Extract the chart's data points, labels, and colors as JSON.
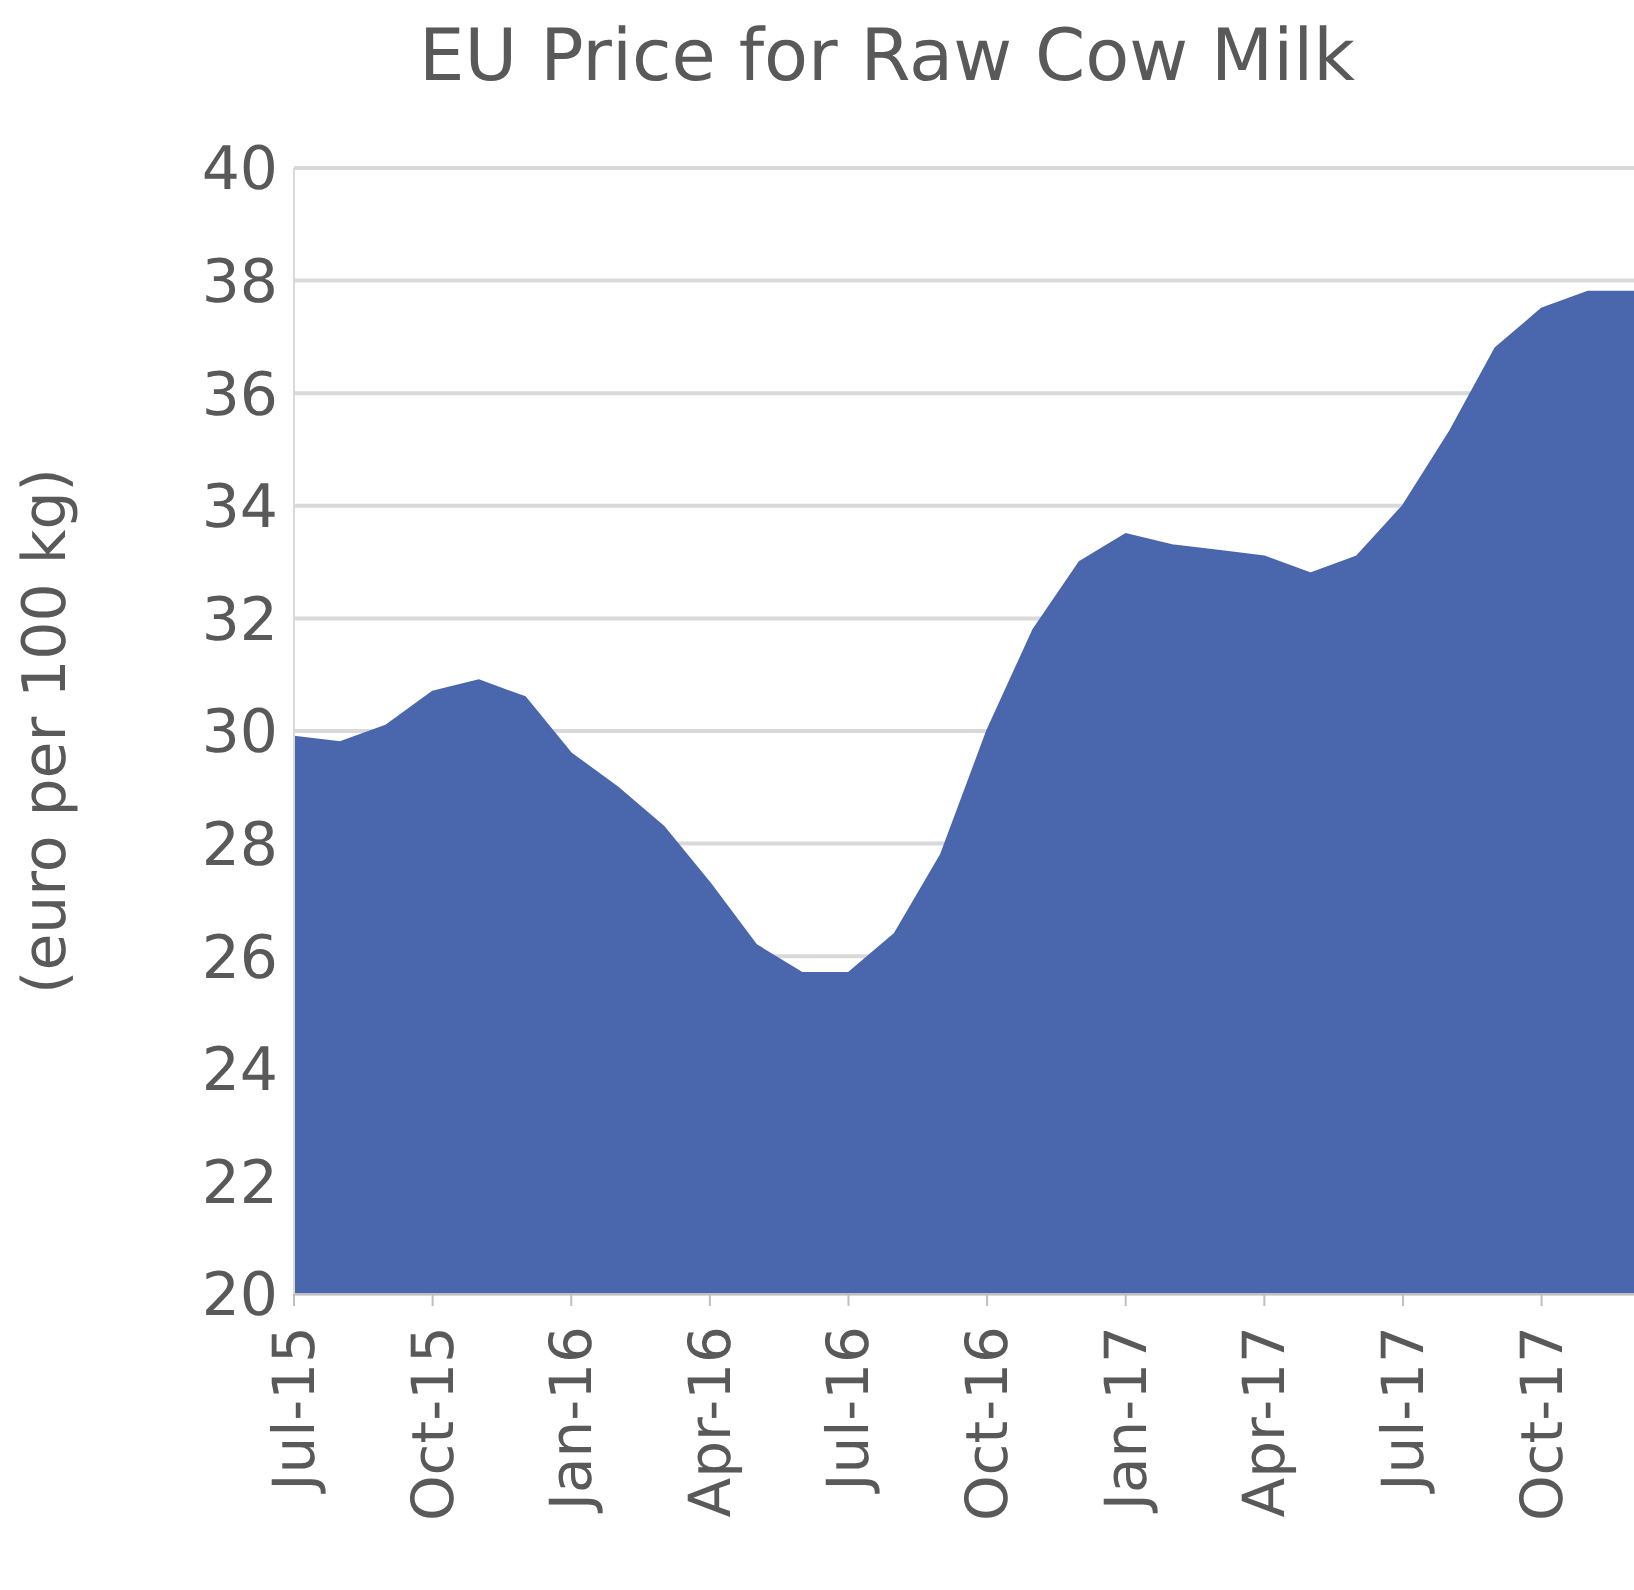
{
  "chart_data": {
    "type": "area",
    "title": "EU Price for Raw Cow Milk",
    "ylabel": "(euro per 100 kg)",
    "x": [
      "2015-07",
      "2015-08",
      "2015-09",
      "2015-10",
      "2015-11",
      "2015-12",
      "2016-01",
      "2016-02",
      "2016-03",
      "2016-04",
      "2016-05",
      "2016-06",
      "2016-07",
      "2016-08",
      "2016-09",
      "2016-10",
      "2016-11",
      "2016-12",
      "2017-01",
      "2017-02",
      "2017-03",
      "2017-04",
      "2017-05",
      "2017-06",
      "2017-07",
      "2017-08",
      "2017-09",
      "2017-10",
      "2017-11",
      "2017-12"
    ],
    "series": [
      {
        "color": "#4a66ac",
        "values": [
          29.9,
          29.8,
          30.1,
          30.7,
          30.9,
          30.6,
          29.6,
          29.0,
          28.3,
          27.3,
          26.2,
          25.7,
          25.7,
          26.4,
          27.8,
          30.0,
          31.8,
          33.0,
          33.5,
          33.3,
          33.2,
          33.1,
          32.8,
          33.1,
          34.0,
          35.3,
          36.8,
          37.5,
          37.8,
          37.8
        ]
      }
    ],
    "xlim": [
      "2015-07",
      "2017-12"
    ],
    "xticks": [
      {
        "value": "2015-07",
        "label": "Jul-15"
      },
      {
        "value": "2015-10",
        "label": "Oct-15"
      },
      {
        "value": "2016-01",
        "label": "Jan-16"
      },
      {
        "value": "2016-04",
        "label": "Apr-16"
      },
      {
        "value": "2016-07",
        "label": "Jul-16"
      },
      {
        "value": "2016-10",
        "label": "Oct-16"
      },
      {
        "value": "2017-01",
        "label": "Jan-17"
      },
      {
        "value": "2017-04",
        "label": "Apr-17"
      },
      {
        "value": "2017-07",
        "label": "Jul-17"
      },
      {
        "value": "2017-10",
        "label": "Oct-17"
      }
    ],
    "ylim": [
      20,
      40
    ],
    "yticks": [
      20,
      22,
      24,
      26,
      28,
      30,
      32,
      34,
      36,
      38,
      40
    ],
    "grid": "y",
    "legend": false
  }
}
